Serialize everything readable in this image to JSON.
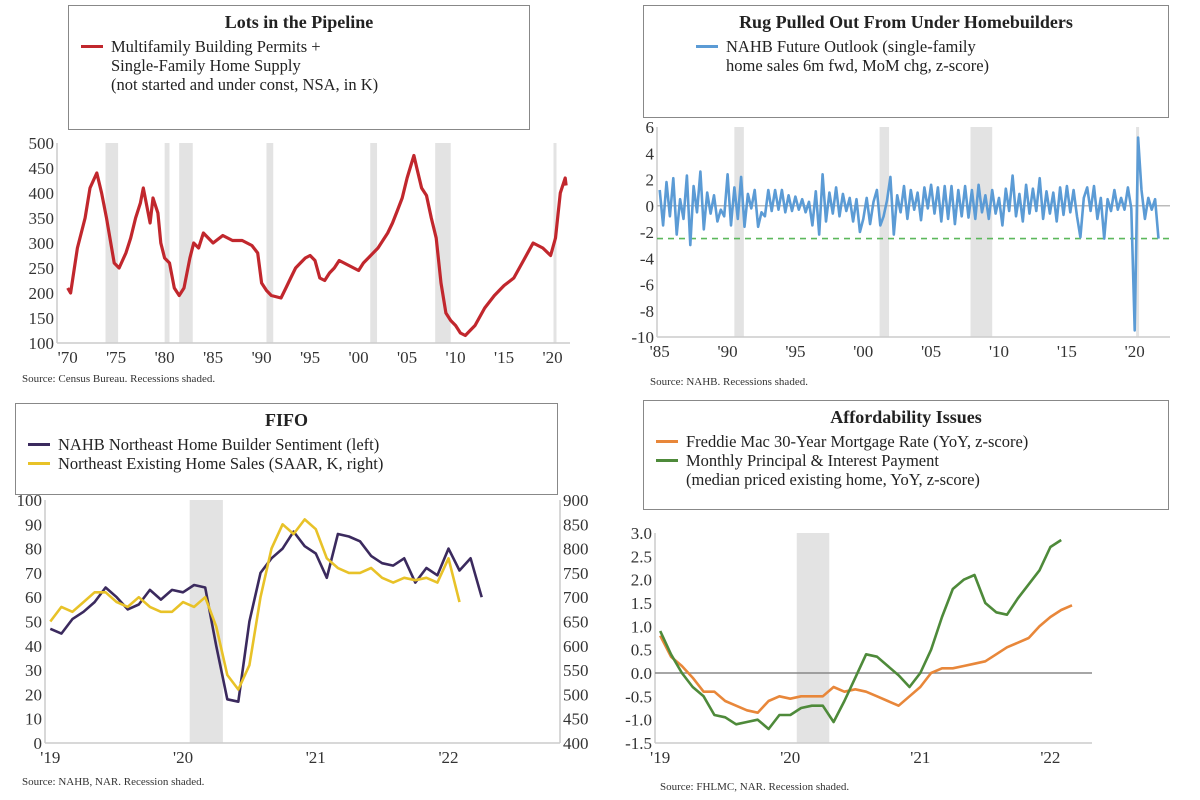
{
  "chart_data": [
    {
      "type": "line",
      "title": "Lots in the Pipeline",
      "legend_lines": [
        "Multifamily Building Permits +",
        "Single-Family Home Supply",
        "(not started and under const, NSA, in K)"
      ],
      "source": "Source: Census Bureau. Recessions shaded.",
      "xlim": [
        1968.9,
        2021.8
      ],
      "ylim": [
        100,
        500
      ],
      "yticks": [
        100,
        150,
        200,
        250,
        300,
        350,
        400,
        450,
        500
      ],
      "xticks": [
        {
          "v": 1970,
          "label": "'70"
        },
        {
          "v": 1975,
          "label": "'75"
        },
        {
          "v": 1980,
          "label": "'80"
        },
        {
          "v": 1985,
          "label": "'85"
        },
        {
          "v": 1990,
          "label": "'90"
        },
        {
          "v": 1995,
          "label": "'95"
        },
        {
          "v": 2000,
          "label": "'00"
        },
        {
          "v": 2005,
          "label": "'05"
        },
        {
          "v": 2010,
          "label": "'10"
        },
        {
          "v": 2015,
          "label": "'15"
        },
        {
          "v": 2020,
          "label": "'20"
        }
      ],
      "recessions": [
        [
          1973.9,
          1975.2
        ],
        [
          1980.0,
          1980.5
        ],
        [
          1981.5,
          1982.9
        ],
        [
          1990.5,
          1991.2
        ],
        [
          2001.2,
          2001.9
        ],
        [
          2007.9,
          2009.5
        ],
        [
          2020.1,
          2020.3
        ]
      ],
      "series": [
        {
          "name": "Multifamily Building Permits + Single-Family Home Supply",
          "color": "#c1272d",
          "x": [
            1970,
            1970.3,
            1971,
            1971.8,
            1972.3,
            1973,
            1973.5,
            1974,
            1974.8,
            1975.3,
            1976,
            1976.5,
            1977,
            1977.5,
            1977.8,
            1978.2,
            1978.5,
            1978.8,
            1979.3,
            1979.6,
            1980,
            1980.5,
            1981,
            1981.5,
            1982,
            1982.6,
            1983,
            1983.5,
            1984,
            1985,
            1986,
            1987,
            1988,
            1989,
            1989.6,
            1990,
            1990.5,
            1991,
            1992,
            1992.5,
            1993,
            1993.5,
            1994,
            1994.5,
            1995,
            1995.5,
            1996,
            1996.5,
            1997,
            1997.5,
            1998,
            1999,
            2000,
            2000.5,
            2001,
            2002,
            2003,
            2003.5,
            2004,
            2004.5,
            2005,
            2005.7,
            2006,
            2006.5,
            2007,
            2007.5,
            2008,
            2008.5,
            2009,
            2009.5,
            2010,
            2010.5,
            2011,
            2011.5,
            2012,
            2013,
            2014,
            2015,
            2016,
            2017,
            2018,
            2019,
            2019.8,
            2020.3,
            2020.8,
            2021.3,
            2021.4
          ],
          "y": [
            210,
            200,
            290,
            350,
            410,
            440,
            400,
            350,
            260,
            250,
            280,
            310,
            350,
            380,
            410,
            370,
            340,
            390,
            360,
            300,
            270,
            260,
            210,
            195,
            210,
            270,
            300,
            290,
            320,
            300,
            315,
            305,
            305,
            295,
            280,
            220,
            205,
            195,
            190,
            210,
            230,
            250,
            260,
            270,
            275,
            265,
            230,
            225,
            240,
            250,
            265,
            255,
            245,
            260,
            270,
            290,
            320,
            340,
            365,
            390,
            430,
            475,
            450,
            410,
            395,
            350,
            310,
            220,
            160,
            145,
            135,
            120,
            115,
            125,
            135,
            170,
            195,
            215,
            230,
            265,
            300,
            290,
            275,
            310,
            400,
            430,
            415
          ]
        }
      ]
    },
    {
      "type": "line",
      "title": "Rug Pulled Out From Under Homebuilders",
      "legend_lines": [
        "NAHB Future Outlook (single-family",
        "home sales 6m fwd, MoM chg, z-score)"
      ],
      "source": "Source: NAHB. Recessions shaded.",
      "xlim": [
        1984.8,
        2022.6
      ],
      "ylim": [
        -10,
        6
      ],
      "yticks": [
        -10,
        -8,
        -6,
        -4,
        -2,
        0,
        2,
        4,
        6
      ],
      "xticks": [
        {
          "v": 1985,
          "label": "'85"
        },
        {
          "v": 1990,
          "label": "'90"
        },
        {
          "v": 1995,
          "label": "'95"
        },
        {
          "v": 2000,
          "label": "'00"
        },
        {
          "v": 2005,
          "label": "'05"
        },
        {
          "v": 2010,
          "label": "'10"
        },
        {
          "v": 2015,
          "label": "'15"
        },
        {
          "v": 2020,
          "label": "'20"
        }
      ],
      "recessions": [
        [
          1990.5,
          1991.2
        ],
        [
          2001.2,
          2001.9
        ],
        [
          2007.9,
          2009.5
        ],
        [
          2020.1,
          2020.3
        ]
      ],
      "reference_lines": [
        {
          "y": 0,
          "color": "#bbbbbb",
          "dash": false
        },
        {
          "y": -2.5,
          "color": "#5cb85c",
          "dash": true
        }
      ],
      "series": [
        {
          "name": "NAHB Future Outlook",
          "color": "#5b9bd5",
          "x_start": 1985,
          "x_step": 0.25,
          "y": [
            1.2,
            -1.5,
            1.8,
            -0.8,
            2.1,
            -2.2,
            0.5,
            -1.0,
            2.3,
            -3.0,
            1.5,
            -0.5,
            2.6,
            -1.8,
            1.0,
            -0.6,
            0.8,
            -1.2,
            -0.3,
            -0.8,
            2.4,
            -1.5,
            1.4,
            -1.0,
            2.2,
            -1.6,
            0.9,
            -0.2,
            1.2,
            -1.6,
            -0.5,
            -0.8,
            1.2,
            -0.4,
            1.2,
            -0.3,
            1.2,
            -0.5,
            0.8,
            -0.4,
            0.7,
            -0.3,
            0.5,
            -0.5,
            0.3,
            -1.5,
            1.1,
            -2.2,
            2.4,
            -1.2,
            1.0,
            -0.6,
            1.4,
            -0.8,
            0.9,
            -0.4,
            0.6,
            -1.2,
            0.5,
            -2.0,
            -1.0,
            0.6,
            -1.4,
            0.3,
            1.2,
            -1.5,
            -0.8,
            0.4,
            2.2,
            -2.2,
            0.8,
            -0.5,
            1.5,
            -1.0,
            1.2,
            -0.3,
            1.0,
            -1.1,
            1.4,
            -0.2,
            1.6,
            -0.6,
            1.4,
            -1.2,
            1.5,
            -1.0,
            1.5,
            -1.4,
            1.2,
            -0.8,
            1.5,
            -0.9,
            1.2,
            -1.0,
            1.6,
            -0.5,
            0.8,
            -1.0,
            1.2,
            -0.6,
            0.6,
            -1.5,
            1.3,
            -0.4,
            2.3,
            -0.8,
            0.9,
            -1.2,
            1.6,
            -0.6,
            1.3,
            -0.4,
            2.1,
            -1.0,
            1.1,
            -0.6,
            1.0,
            -1.2,
            1.4,
            -0.7,
            1.5,
            -0.5,
            1.2,
            -0.8,
            -2.4,
            0.6,
            1.4,
            -0.4,
            1.5,
            -1.0,
            0.6,
            -2.5,
            0.5,
            -0.4,
            1.2,
            -0.3,
            0.6,
            -0.3,
            1.4,
            -0.2,
            -9.5,
            5.2,
            1.2,
            -1.0,
            0.6,
            -0.3,
            0.5,
            -2.5
          ]
        }
      ]
    },
    {
      "type": "line",
      "title": "FIFO",
      "source": "Source: NAHB, NAR. Recession shaded.",
      "xlim": [
        2018.96,
        2022.84
      ],
      "ylim": [
        0,
        100
      ],
      "y2lim": [
        400,
        900
      ],
      "yticks": [
        0,
        10,
        20,
        30,
        40,
        50,
        60,
        70,
        80,
        90,
        100
      ],
      "y2ticks": [
        400,
        450,
        500,
        550,
        600,
        650,
        700,
        750,
        800,
        850,
        900
      ],
      "xticks": [
        {
          "v": 2019,
          "label": "'19"
        },
        {
          "v": 2020,
          "label": "'20"
        },
        {
          "v": 2021,
          "label": "'21"
        },
        {
          "v": 2022,
          "label": "'22"
        }
      ],
      "recessions": [
        [
          2020.05,
          2020.3
        ]
      ],
      "series": [
        {
          "name": "NAHB Northeast Home Builder Sentiment (left)",
          "color": "#3b2a5e",
          "axis": "left",
          "x_start": 2019.0,
          "x_step": 0.08333,
          "y": [
            47,
            45,
            51,
            54,
            58,
            64,
            60,
            55,
            57,
            63,
            59,
            63,
            62,
            65,
            64,
            40,
            18,
            17,
            50,
            70,
            76,
            80,
            87,
            81,
            78,
            68,
            86,
            85,
            83,
            77,
            74,
            73,
            76,
            66,
            72,
            69,
            80,
            71,
            76,
            60
          ]
        },
        {
          "name": "Northeast Existing Home Sales (SAAR, K, right)",
          "color": "#e8c228",
          "axis": "right",
          "x_start": 2019.0,
          "x_step": 0.08333,
          "y": [
            650,
            680,
            670,
            690,
            710,
            710,
            690,
            680,
            700,
            680,
            670,
            670,
            690,
            680,
            700,
            640,
            540,
            510,
            560,
            700,
            800,
            850,
            830,
            860,
            840,
            780,
            760,
            750,
            750,
            760,
            740,
            730,
            740,
            735,
            740,
            730,
            780,
            690
          ]
        }
      ]
    },
    {
      "type": "line",
      "title": "Affordability Issues",
      "source": "Source:  FHLMC, NAR. Recession shaded.",
      "xlim": [
        2018.96,
        2022.32
      ],
      "ylim": [
        -1.5,
        3.0
      ],
      "yticks": [
        -1.5,
        -1.0,
        -0.5,
        0.0,
        0.5,
        1.0,
        1.5,
        2.0,
        2.5,
        3.0
      ],
      "xticks": [
        {
          "v": 2019,
          "label": "'19"
        },
        {
          "v": 2020,
          "label": "'20"
        },
        {
          "v": 2021,
          "label": "'21"
        },
        {
          "v": 2022,
          "label": "'22"
        }
      ],
      "recessions": [
        [
          2020.05,
          2020.3
        ]
      ],
      "reference_lines": [
        {
          "y": 0,
          "color": "#888888",
          "dash": false
        }
      ],
      "series": [
        {
          "name": "Freddie Mac 30-Year Mortgage Rate (YoY, z-score)",
          "legend_lines": [
            "Freddie Mac 30-Year Mortgage Rate (YoY, z-score)"
          ],
          "color": "#e8873a",
          "x_start": 2019.0,
          "x_step": 0.08333,
          "y": [
            0.8,
            0.35,
            0.15,
            -0.1,
            -0.4,
            -0.4,
            -0.6,
            -0.7,
            -0.8,
            -0.85,
            -0.6,
            -0.5,
            -0.55,
            -0.5,
            -0.5,
            -0.5,
            -0.3,
            -0.4,
            -0.35,
            -0.4,
            -0.5,
            -0.6,
            -0.7,
            -0.5,
            -0.3,
            0.0,
            0.1,
            0.1,
            0.15,
            0.2,
            0.25,
            0.4,
            0.55,
            0.65,
            0.75,
            1.0,
            1.2,
            1.35,
            1.45
          ]
        },
        {
          "name": "Monthly Principal & Interest Payment (median priced existing home, YoY, z-score)",
          "legend_lines": [
            "Monthly Principal & Interest Payment",
            "(median priced existing home, YoY, z-score)"
          ],
          "color": "#4e8a3a",
          "x_start": 2019.0,
          "x_step": 0.08333,
          "y": [
            0.9,
            0.4,
            0.0,
            -0.3,
            -0.5,
            -0.9,
            -0.95,
            -1.1,
            -1.05,
            -1.0,
            -1.2,
            -0.9,
            -0.9,
            -0.75,
            -0.7,
            -0.7,
            -1.05,
            -0.6,
            -0.1,
            0.4,
            0.35,
            0.15,
            -0.05,
            -0.3,
            0.0,
            0.5,
            1.2,
            1.8,
            2.0,
            2.1,
            1.5,
            1.3,
            1.25,
            1.6,
            1.9,
            2.2,
            2.7,
            2.85
          ]
        }
      ]
    }
  ]
}
